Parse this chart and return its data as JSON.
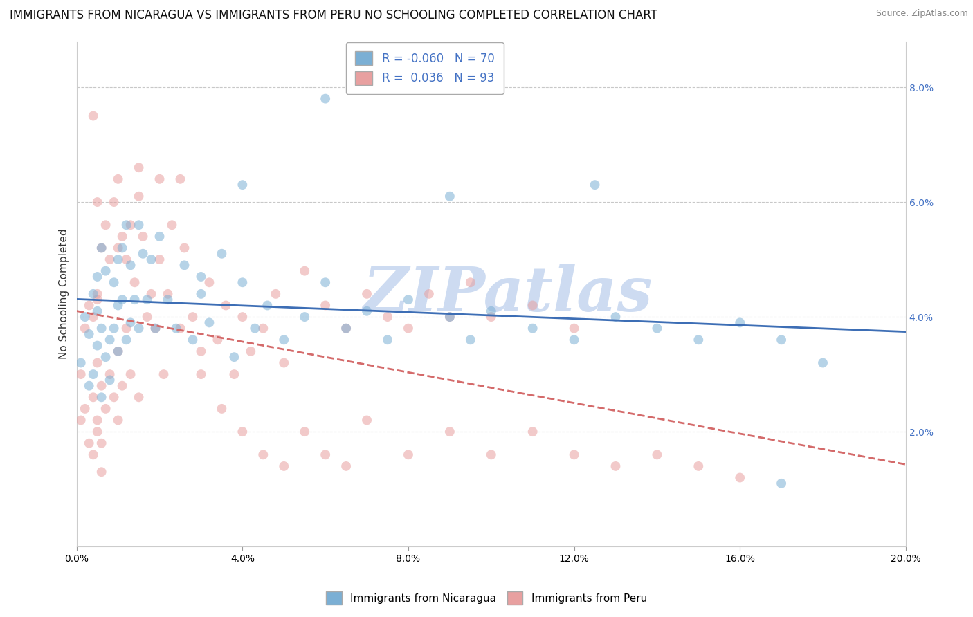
{
  "title": "IMMIGRANTS FROM NICARAGUA VS IMMIGRANTS FROM PERU NO SCHOOLING COMPLETED CORRELATION CHART",
  "source": "Source: ZipAtlas.com",
  "ylabel": "No Schooling Completed",
  "xlim": [
    0.0,
    0.2
  ],
  "ylim": [
    0.0,
    0.088
  ],
  "xticks": [
    0.0,
    0.04,
    0.08,
    0.12,
    0.16,
    0.2
  ],
  "xtick_labels": [
    "0.0%",
    "4.0%",
    "8.0%",
    "12.0%",
    "16.0%",
    "20.0%"
  ],
  "yticks": [
    0.0,
    0.02,
    0.04,
    0.06,
    0.08
  ],
  "ytick_labels_left": [
    "",
    "",
    "",
    "",
    ""
  ],
  "ytick_labels_right": [
    "",
    "2.0%",
    "4.0%",
    "6.0%",
    "8.0%"
  ],
  "nicaragua_R": -0.06,
  "nicaragua_N": 70,
  "peru_R": 0.036,
  "peru_N": 93,
  "nicaragua_color": "#7bafd4",
  "peru_color": "#e8a0a0",
  "nicaragua_line_color": "#3d6eb5",
  "peru_line_color": "#d46a6a",
  "right_axis_color": "#4472c4",
  "watermark_text": "ZIPatlas",
  "watermark_color": "#c8d8f0",
  "legend_label_nicaragua": "Immigrants from Nicaragua",
  "legend_label_peru": "Immigrants from Peru",
  "nicaragua_x": [
    0.001,
    0.002,
    0.003,
    0.003,
    0.004,
    0.004,
    0.005,
    0.005,
    0.005,
    0.006,
    0.006,
    0.006,
    0.007,
    0.007,
    0.008,
    0.008,
    0.009,
    0.009,
    0.01,
    0.01,
    0.01,
    0.011,
    0.011,
    0.012,
    0.012,
    0.013,
    0.013,
    0.014,
    0.015,
    0.015,
    0.016,
    0.017,
    0.018,
    0.019,
    0.02,
    0.022,
    0.024,
    0.026,
    0.028,
    0.03,
    0.032,
    0.035,
    0.038,
    0.04,
    0.043,
    0.046,
    0.05,
    0.055,
    0.06,
    0.065,
    0.07,
    0.075,
    0.08,
    0.09,
    0.095,
    0.1,
    0.11,
    0.12,
    0.13,
    0.14,
    0.15,
    0.16,
    0.17,
    0.18,
    0.125,
    0.09,
    0.06,
    0.04,
    0.03,
    0.17
  ],
  "nicaragua_y": [
    0.032,
    0.04,
    0.037,
    0.028,
    0.044,
    0.03,
    0.041,
    0.035,
    0.047,
    0.038,
    0.026,
    0.052,
    0.033,
    0.048,
    0.036,
    0.029,
    0.046,
    0.038,
    0.05,
    0.042,
    0.034,
    0.052,
    0.043,
    0.056,
    0.036,
    0.049,
    0.039,
    0.043,
    0.056,
    0.038,
    0.051,
    0.043,
    0.05,
    0.038,
    0.054,
    0.043,
    0.038,
    0.049,
    0.036,
    0.044,
    0.039,
    0.051,
    0.033,
    0.046,
    0.038,
    0.042,
    0.036,
    0.04,
    0.046,
    0.038,
    0.041,
    0.036,
    0.043,
    0.04,
    0.036,
    0.041,
    0.038,
    0.036,
    0.04,
    0.038,
    0.036,
    0.039,
    0.036,
    0.032,
    0.063,
    0.061,
    0.078,
    0.063,
    0.047,
    0.011
  ],
  "peru_x": [
    0.001,
    0.001,
    0.002,
    0.002,
    0.003,
    0.003,
    0.004,
    0.004,
    0.004,
    0.005,
    0.005,
    0.005,
    0.006,
    0.006,
    0.006,
    0.007,
    0.007,
    0.008,
    0.008,
    0.009,
    0.009,
    0.01,
    0.01,
    0.01,
    0.011,
    0.011,
    0.012,
    0.012,
    0.013,
    0.013,
    0.014,
    0.015,
    0.015,
    0.016,
    0.017,
    0.018,
    0.019,
    0.02,
    0.021,
    0.022,
    0.023,
    0.025,
    0.026,
    0.028,
    0.03,
    0.032,
    0.034,
    0.036,
    0.038,
    0.04,
    0.042,
    0.045,
    0.048,
    0.05,
    0.055,
    0.06,
    0.065,
    0.07,
    0.075,
    0.08,
    0.085,
    0.09,
    0.095,
    0.1,
    0.11,
    0.12,
    0.01,
    0.015,
    0.02,
    0.025,
    0.03,
    0.035,
    0.04,
    0.045,
    0.05,
    0.055,
    0.06,
    0.065,
    0.07,
    0.08,
    0.09,
    0.1,
    0.11,
    0.12,
    0.13,
    0.14,
    0.15,
    0.16,
    0.004,
    0.005,
    0.005,
    0.005,
    0.006
  ],
  "peru_y": [
    0.03,
    0.022,
    0.038,
    0.024,
    0.042,
    0.018,
    0.04,
    0.026,
    0.016,
    0.043,
    0.032,
    0.02,
    0.052,
    0.028,
    0.018,
    0.056,
    0.024,
    0.05,
    0.03,
    0.06,
    0.026,
    0.052,
    0.034,
    0.022,
    0.054,
    0.028,
    0.05,
    0.038,
    0.056,
    0.03,
    0.046,
    0.061,
    0.026,
    0.054,
    0.04,
    0.044,
    0.038,
    0.05,
    0.03,
    0.044,
    0.056,
    0.038,
    0.052,
    0.04,
    0.034,
    0.046,
    0.036,
    0.042,
    0.03,
    0.04,
    0.034,
    0.038,
    0.044,
    0.032,
    0.048,
    0.042,
    0.038,
    0.044,
    0.04,
    0.038,
    0.044,
    0.04,
    0.046,
    0.04,
    0.042,
    0.038,
    0.064,
    0.066,
    0.064,
    0.064,
    0.03,
    0.024,
    0.02,
    0.016,
    0.014,
    0.02,
    0.016,
    0.014,
    0.022,
    0.016,
    0.02,
    0.016,
    0.02,
    0.016,
    0.014,
    0.016,
    0.014,
    0.012,
    0.075,
    0.06,
    0.022,
    0.044,
    0.013
  ],
  "nicaragua_marker_size": 100,
  "peru_marker_size": 100,
  "background_color": "#ffffff",
  "grid_color": "#c8c8c8",
  "title_fontsize": 12,
  "axis_label_fontsize": 11,
  "tick_fontsize": 10,
  "legend_fontsize": 12
}
